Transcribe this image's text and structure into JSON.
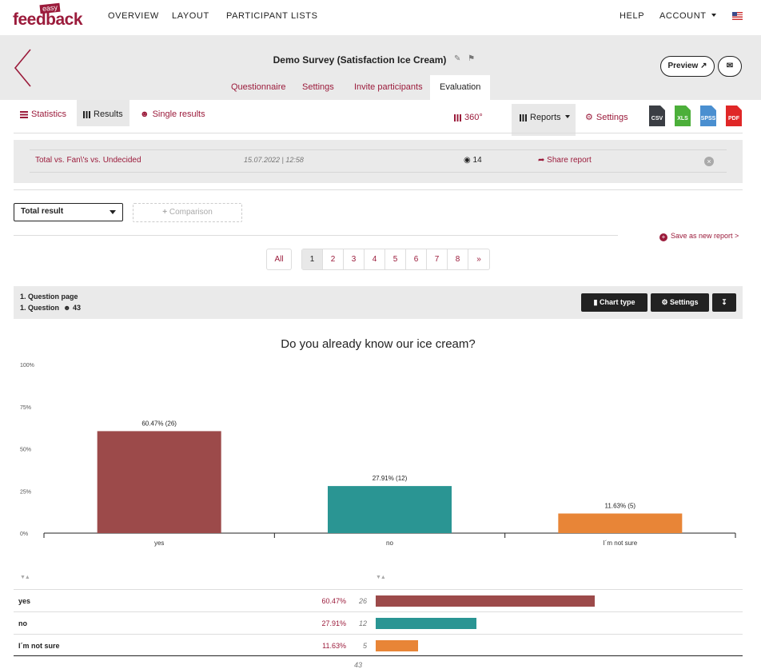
{
  "nav": {
    "logo_small": "easy",
    "logo_main": "feedback",
    "links": [
      "OVERVIEW",
      "LAYOUT",
      "PARTICIPANT LISTS"
    ],
    "help": "HELP",
    "account": "ACCOUNT"
  },
  "header": {
    "survey_title": "Demo Survey (Satisfaction Ice Cream)",
    "tabs": [
      "Questionnaire",
      "Settings",
      "Invite participants",
      "Evaluation"
    ],
    "preview": "Preview"
  },
  "subnav": {
    "statistics": "Statistics",
    "results": "Results",
    "single_results": "Single results",
    "view360": "360°",
    "reports": "Reports",
    "settings": "Settings",
    "exports": [
      "CSV",
      "XLS",
      "SPSS",
      "PDF"
    ]
  },
  "report": {
    "name": "Total vs. Fan\\'s vs. Undecided",
    "date": "15.07.2022 | 12:58",
    "views": "14",
    "share": "Share report"
  },
  "filters": {
    "selected": "Total result",
    "comparison": "Comparison",
    "save_new": "Save as new report >"
  },
  "pager": {
    "all": "All",
    "pages": [
      "1",
      "2",
      "3",
      "4",
      "5",
      "6",
      "7",
      "8",
      "»"
    ]
  },
  "question": {
    "page": "1. Question page",
    "label": "1. Question",
    "count": "43",
    "chart_type": "Chart type",
    "settings": "Settings",
    "title": "Do you already know our ice cream?"
  },
  "chart_data": {
    "type": "bar",
    "categories": [
      "yes",
      "no",
      "I´m not sure"
    ],
    "values": [
      60.47,
      27.91,
      11.63
    ],
    "counts": [
      26,
      12,
      5
    ],
    "data_labels": [
      "60.47% (26)",
      "27.91% (12)",
      "11.63% (5)"
    ],
    "colors": [
      "#9c4a4a",
      "#2a9593",
      "#e88537"
    ],
    "yticks": [
      "100%",
      "75%",
      "50%",
      "25%",
      "0%"
    ],
    "ylim": [
      0,
      100
    ]
  },
  "table": {
    "rows": [
      {
        "label": "yes",
        "percent": "60.47%",
        "count": "26"
      },
      {
        "label": "no",
        "percent": "27.91%",
        "count": "12"
      },
      {
        "label": "I´m not sure",
        "percent": "11.63%",
        "count": "5"
      }
    ],
    "total": "43"
  }
}
